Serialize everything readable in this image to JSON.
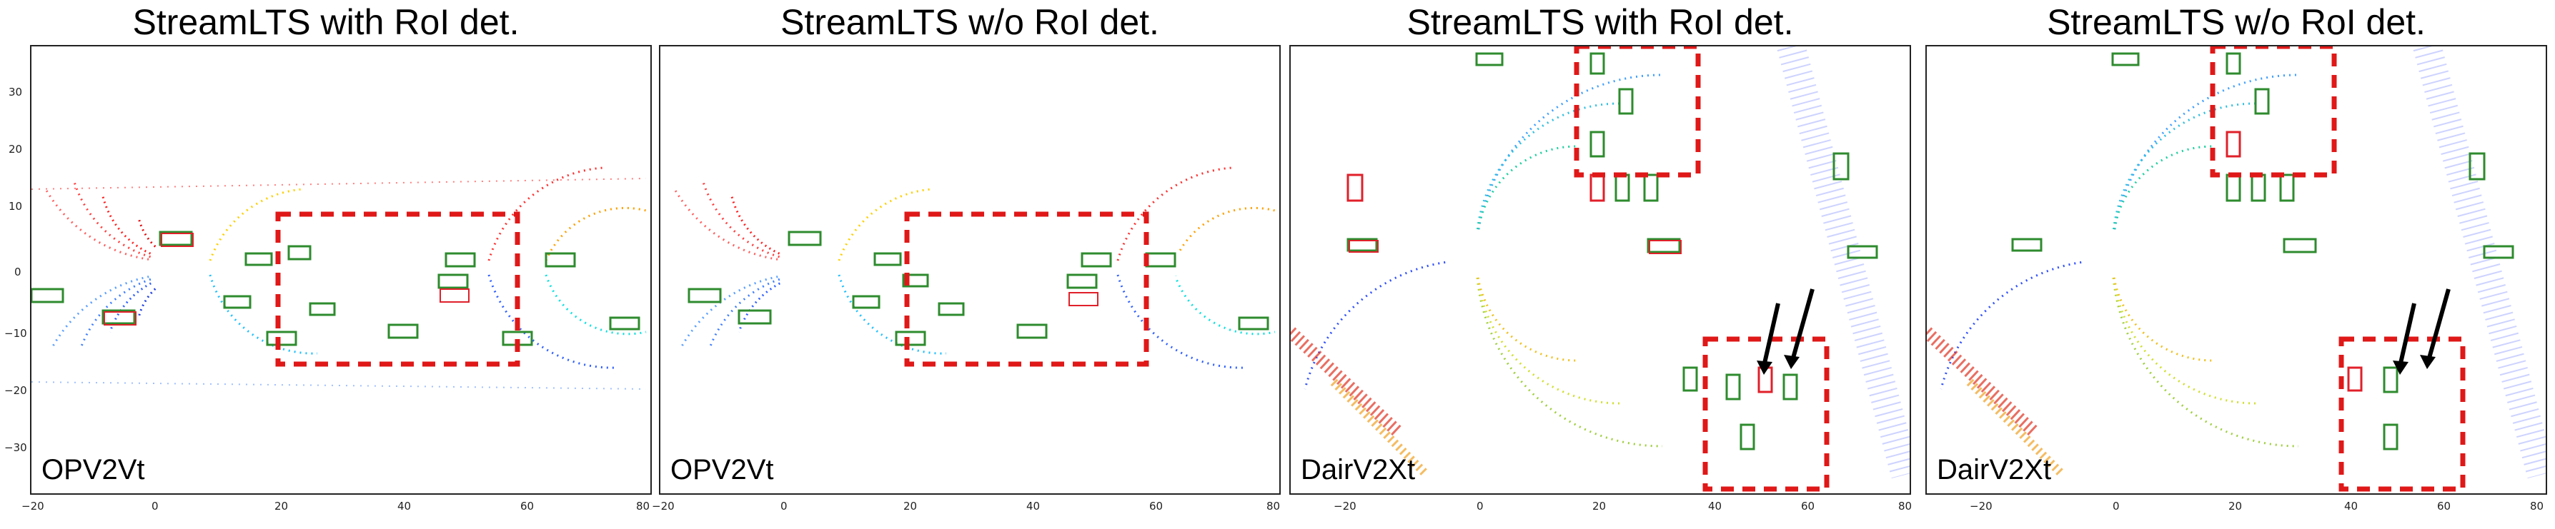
{
  "panels": [
    {
      "title": "StreamLTS with RoI det.",
      "dataset": "OPV2Vt",
      "x_ticks": [
        "−20",
        "0",
        "20",
        "40",
        "60",
        "80"
      ],
      "y_ticks": [
        "30",
        "20",
        "10",
        "0",
        "−10",
        "−20",
        "−30"
      ]
    },
    {
      "title": "StreamLTS w/o RoI det.",
      "dataset": "OPV2Vt",
      "x_ticks": [
        "−20",
        "0",
        "20",
        "40",
        "60",
        "80"
      ],
      "y_ticks": []
    },
    {
      "title": "StreamLTS with RoI det.",
      "dataset": "DairV2Xt",
      "x_ticks": [
        "−20",
        "0",
        "20",
        "40",
        "60",
        "80"
      ],
      "y_ticks": []
    },
    {
      "title": "StreamLTS w/o RoI det.",
      "dataset": "DairV2Xt",
      "x_ticks": [
        "−20",
        "0",
        "20",
        "40",
        "60",
        "80"
      ],
      "y_ticks": []
    }
  ],
  "colors": {
    "gt_box": "#2e8b2e",
    "pred_box": "#e0202a",
    "roi_dash": "#e01818",
    "arrow": "#000000"
  }
}
